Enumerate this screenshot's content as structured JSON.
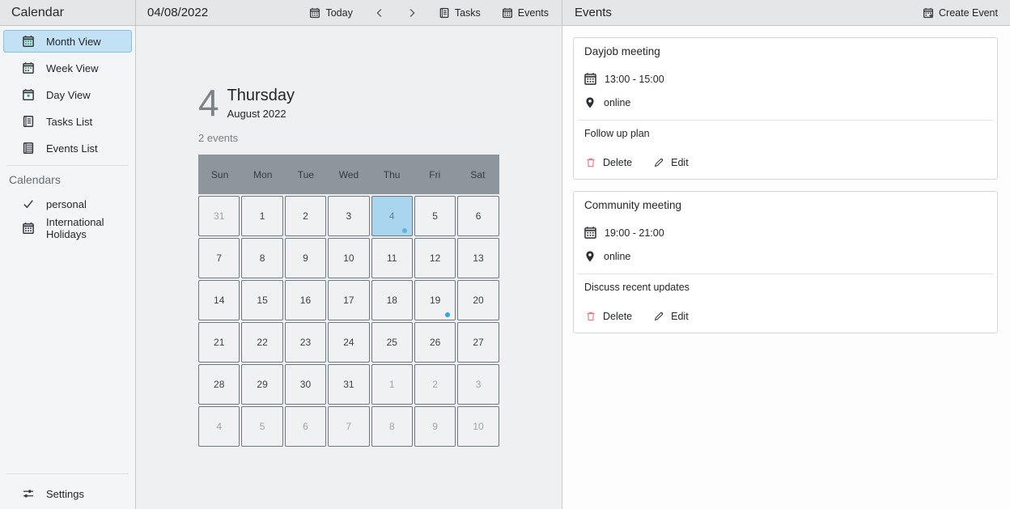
{
  "app": {
    "title": "Calendar"
  },
  "colors": {
    "accent_blue": "#3daee9",
    "selected_item_bg": "#c3e1f5",
    "selected_item_border": "#7fc2ec",
    "selected_day_bg": "#a9d5ee",
    "weekday_header_bg": "#8d959d",
    "event_dot": "#36a3e3",
    "delete_red": "#e8757c",
    "calendar_icon_green": "#27ae60"
  },
  "sidebar": {
    "title": "Calendar",
    "items": [
      {
        "label": "Month View",
        "icon": "calendar-month",
        "selected": true
      },
      {
        "label": "Week View",
        "icon": "calendar-week"
      },
      {
        "label": "Day View",
        "icon": "calendar-day"
      },
      {
        "label": "Tasks List",
        "icon": "tasks-list"
      },
      {
        "label": "Events List",
        "icon": "events-list"
      }
    ],
    "calendars": {
      "heading": "Calendars",
      "items": [
        {
          "label": "personal",
          "icon": "check"
        },
        {
          "label": "International Holidays",
          "icon": "calendar"
        }
      ]
    },
    "settings": {
      "label": "Settings",
      "icon": "settings-sliders"
    }
  },
  "toolbar": {
    "date_label": "04/08/2022",
    "today_label": "Today",
    "tasks_label": "Tasks",
    "events_label": "Events",
    "icons": {
      "today": "calendar",
      "previous": "chevron-left",
      "next": "chevron-right",
      "tasks": "tasks-list",
      "events": "calendar"
    }
  },
  "events_panel": {
    "title": "Events",
    "create_event": {
      "label": "Create Event",
      "icon": "calendar-plus"
    },
    "card_icons": {
      "time": "calendar",
      "location": "location-pin",
      "delete": "trash",
      "edit": "pencil"
    },
    "actions": {
      "delete_label": "Delete",
      "edit_label": "Edit"
    },
    "cards": [
      {
        "title": "Dayjob meeting",
        "time": "13:00 - 15:00",
        "location": "online",
        "description": "Follow up plan"
      },
      {
        "title": "Community meeting",
        "time": "19:00 - 21:00",
        "location": "online",
        "description": "Discuss recent updates"
      }
    ]
  },
  "day_view": {
    "day_number": "4",
    "day_name": "Thursday",
    "month_year": "August 2022",
    "events_count": "2 events",
    "weekdays": [
      "Sun",
      "Mon",
      "Tue",
      "Wed",
      "Thu",
      "Fri",
      "Sat"
    ],
    "cells": [
      {
        "day": "31",
        "other_month": true
      },
      {
        "day": "1"
      },
      {
        "day": "2"
      },
      {
        "day": "3"
      },
      {
        "day": "4",
        "selected": true,
        "has_event_dot": true
      },
      {
        "day": "5"
      },
      {
        "day": "6"
      },
      {
        "day": "7"
      },
      {
        "day": "8"
      },
      {
        "day": "9"
      },
      {
        "day": "10"
      },
      {
        "day": "11"
      },
      {
        "day": "12"
      },
      {
        "day": "13"
      },
      {
        "day": "14"
      },
      {
        "day": "15"
      },
      {
        "day": "16"
      },
      {
        "day": "17"
      },
      {
        "day": "18"
      },
      {
        "day": "19",
        "has_event_dot": true
      },
      {
        "day": "20"
      },
      {
        "day": "21"
      },
      {
        "day": "22"
      },
      {
        "day": "23"
      },
      {
        "day": "24"
      },
      {
        "day": "25"
      },
      {
        "day": "26"
      },
      {
        "day": "27"
      },
      {
        "day": "28"
      },
      {
        "day": "29"
      },
      {
        "day": "30"
      },
      {
        "day": "31"
      },
      {
        "day": "1",
        "other_month": true
      },
      {
        "day": "2",
        "other_month": true
      },
      {
        "day": "3",
        "other_month": true
      },
      {
        "day": "4",
        "other_month": true
      },
      {
        "day": "5",
        "other_month": true
      },
      {
        "day": "6",
        "other_month": true
      },
      {
        "day": "7",
        "other_month": true
      },
      {
        "day": "8",
        "other_month": true
      },
      {
        "day": "9",
        "other_month": true
      },
      {
        "day": "10",
        "other_month": true
      }
    ]
  }
}
